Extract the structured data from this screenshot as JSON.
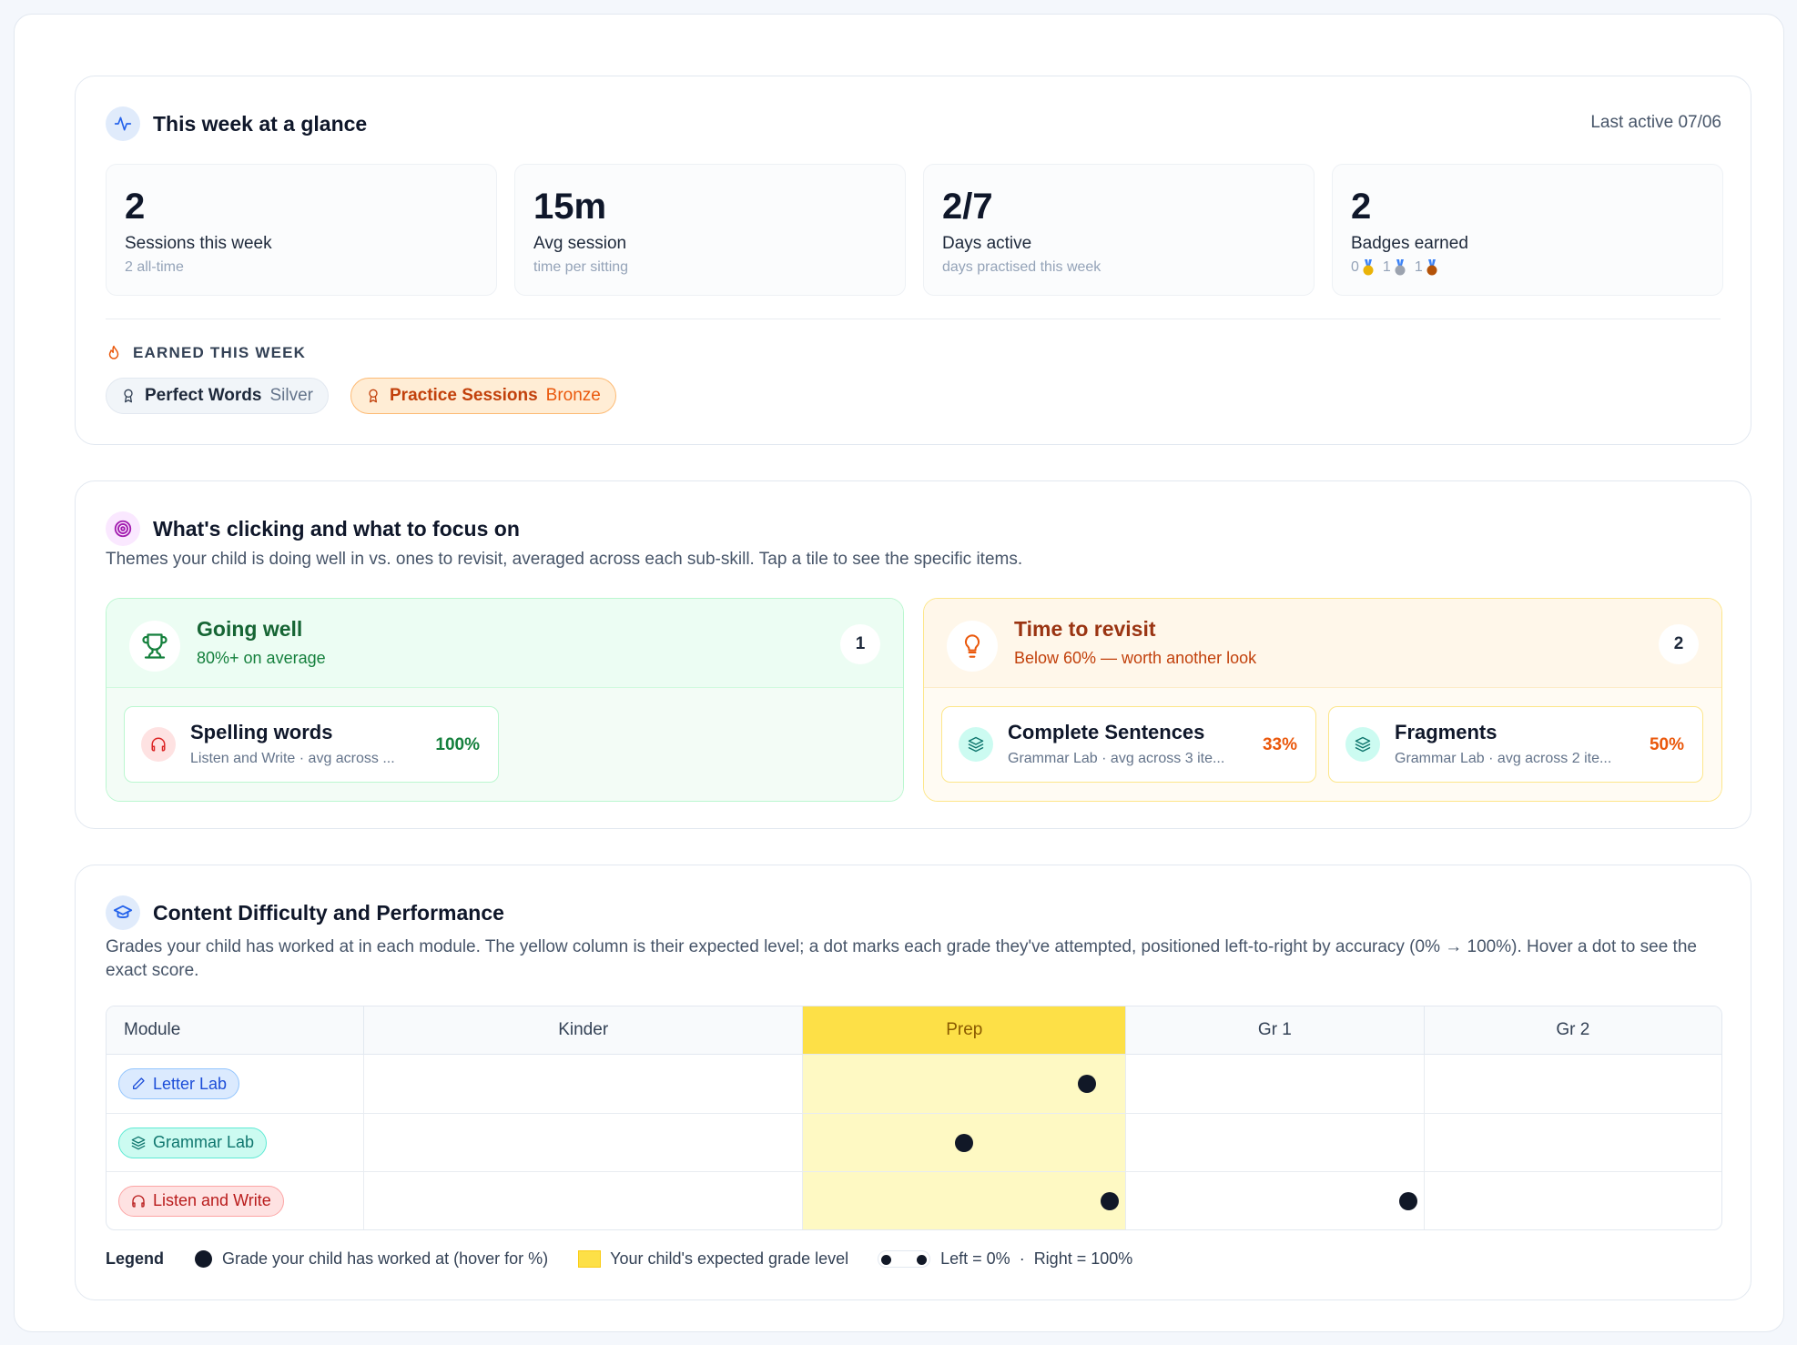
{
  "glance": {
    "title": "This week at a glance",
    "last_active": "Last active 07/06",
    "stats": [
      {
        "value": "2",
        "label": "Sessions this week",
        "sub": "2 all-time"
      },
      {
        "value": "15m",
        "label": "Avg session",
        "sub": "time per sitting"
      },
      {
        "value": "2/7",
        "label": "Days active",
        "sub": "days practised this week"
      },
      {
        "value": "2",
        "label": "Badges earned",
        "medals": [
          {
            "count": "0",
            "medal": "gold-medal-icon"
          },
          {
            "count": "1",
            "medal": "silver-medal-icon"
          },
          {
            "count": "1",
            "medal": "bronze-medal-icon"
          }
        ]
      }
    ],
    "earned_heading": "EARNED THIS WEEK",
    "badges": [
      {
        "name": "Perfect Words",
        "tier": "Silver"
      },
      {
        "name": "Practice Sessions",
        "tier": "Bronze"
      }
    ]
  },
  "focus": {
    "title": "What's clicking and what to focus on",
    "description": "Themes your child is doing well in vs. ones to revisit, averaged across each sub-skill. Tap a tile to see the specific items.",
    "going_well": {
      "title": "Going well",
      "subtitle": "80%+ on average",
      "count": "1",
      "tiles": [
        {
          "name": "Spelling words",
          "sub": "Listen and Write · avg across ...",
          "pct": "100%"
        }
      ]
    },
    "revisit": {
      "title": "Time to revisit",
      "subtitle": "Below 60% — worth another look",
      "count": "2",
      "tiles": [
        {
          "name": "Complete Sentences",
          "sub": "Grammar Lab · avg across 3 ite...",
          "pct": "33%"
        },
        {
          "name": "Fragments",
          "sub": "Grammar Lab · avg across 2 ite...",
          "pct": "50%"
        }
      ]
    }
  },
  "difficulty": {
    "title": "Content Difficulty and Performance",
    "description": "Grades your child has worked at in each module. The yellow column is their expected level; a dot marks each grade they've attempted, positioned left-to-right by accuracy (0% → 100%). Hover a dot to see the exact score.",
    "columns": [
      "Module",
      "Kinder",
      "Prep",
      "Gr 1",
      "Gr 2"
    ],
    "expected_grade": "Prep",
    "rows": [
      {
        "module": "Letter Lab",
        "attempts": [
          {
            "grade": "Prep",
            "accuracy": 0.88
          }
        ]
      },
      {
        "module": "Grammar Lab",
        "attempts": [
          {
            "grade": "Prep",
            "accuracy": 0.5
          }
        ]
      },
      {
        "module": "Listen and Write",
        "attempts": [
          {
            "grade": "Prep",
            "accuracy": 0.95
          },
          {
            "grade": "Gr 1",
            "accuracy": 0.95
          }
        ]
      }
    ],
    "legend": {
      "title": "Legend",
      "dot": "Grade your child has worked at (hover for %)",
      "expected": "Your child's expected grade level",
      "scale_left": "Left = 0%",
      "scale_sep": "·",
      "scale_right": "Right = 100%"
    }
  }
}
